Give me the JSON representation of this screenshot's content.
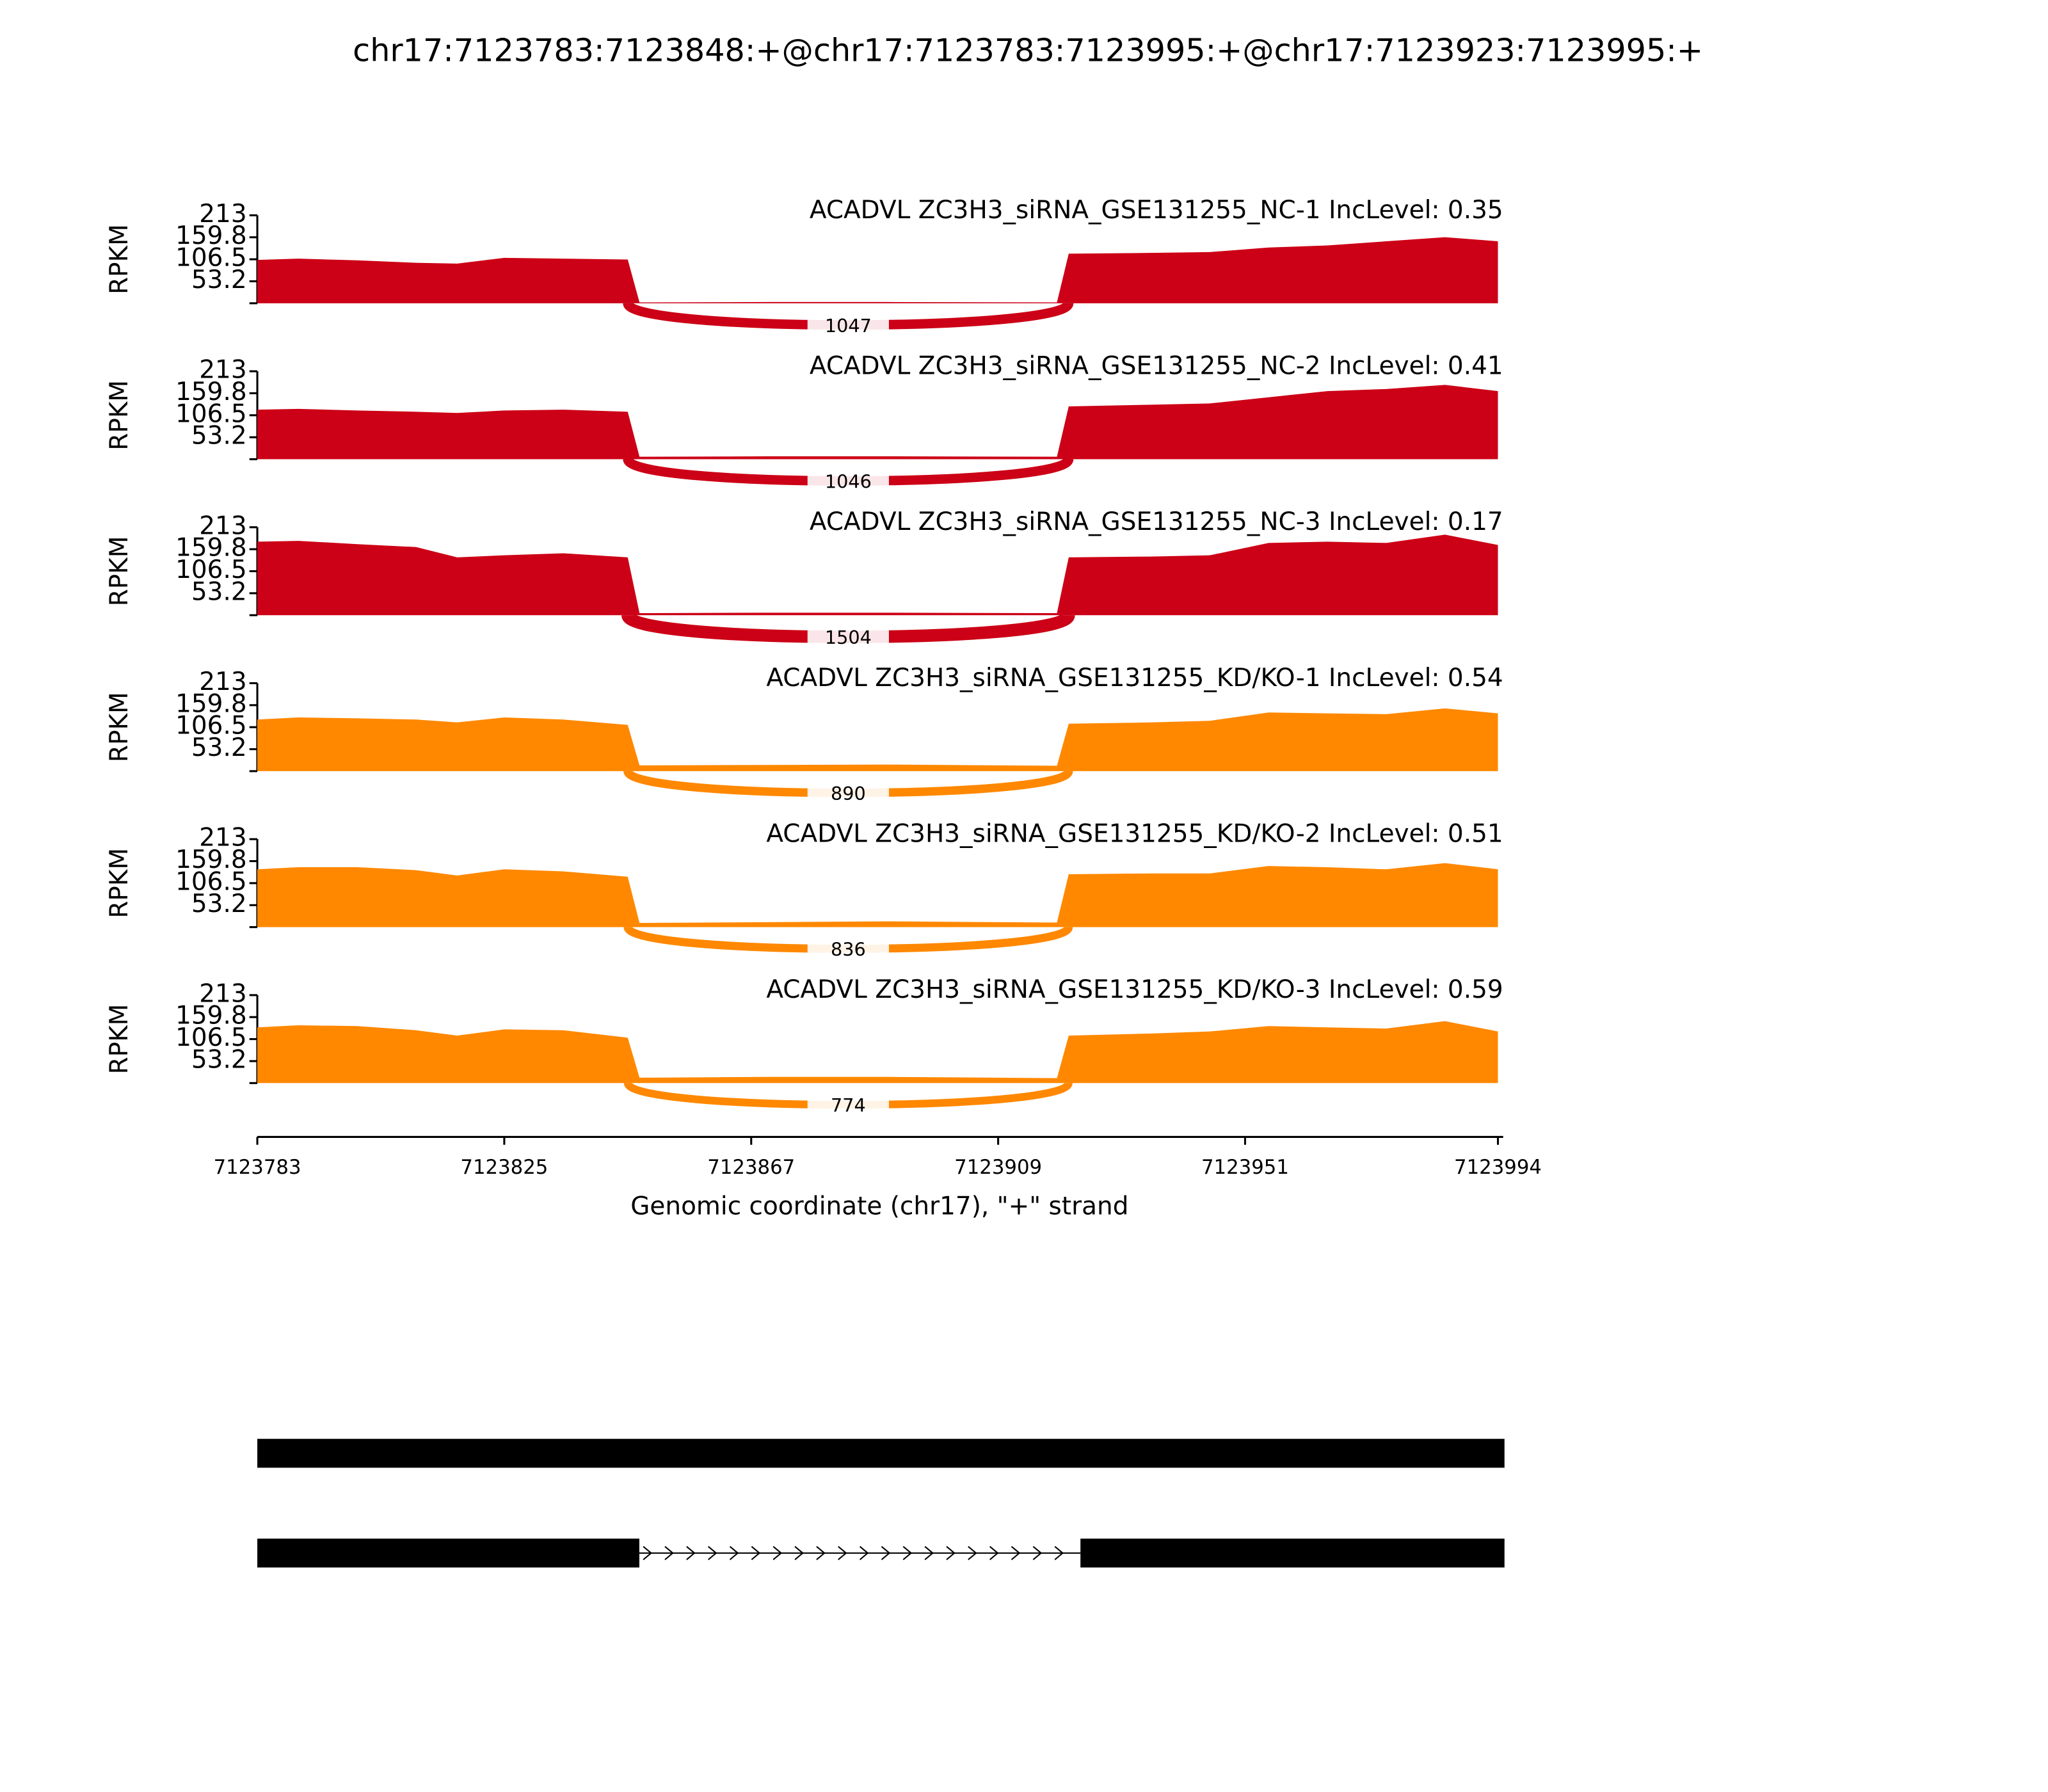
{
  "title": "chr17:7123783:7123848:+@chr17:7123783:7123995:+@chr17:7123923:7123995:+",
  "chart_data": [
    {
      "type": "area",
      "title": "ACADVL ZC3H3_siRNA_GSE131255_NC-1 IncLevel: 0.35",
      "ylabel": "RPKM",
      "color": "#cc0016",
      "x": [
        7123783,
        7123790,
        7123800,
        7123810,
        7123817,
        7123825,
        7123835,
        7123846,
        7123848,
        7123870,
        7123890,
        7123919,
        7123921,
        7123935,
        7123945,
        7123955,
        7123965,
        7123975,
        7123985,
        7123994
      ],
      "values": [
        105,
        108,
        104,
        98,
        96,
        110,
        108,
        106,
        2,
        3,
        3,
        2,
        120,
        122,
        124,
        135,
        140,
        150,
        160,
        150
      ],
      "junction_count": 1047,
      "xlim": [
        7123783,
        7123994
      ],
      "ylim": [
        0,
        213
      ],
      "yticks": [
        53.2,
        106.5,
        159.8,
        213
      ]
    },
    {
      "type": "area",
      "title": "ACADVL ZC3H3_siRNA_GSE131255_NC-2 IncLevel: 0.41",
      "ylabel": "RPKM",
      "color": "#cc0016",
      "x": [
        7123783,
        7123790,
        7123800,
        7123810,
        7123817,
        7123825,
        7123835,
        7123846,
        7123848,
        7123870,
        7123890,
        7123919,
        7123921,
        7123935,
        7123945,
        7123955,
        7123965,
        7123975,
        7123985,
        7123994
      ],
      "values": [
        120,
        122,
        118,
        115,
        112,
        118,
        120,
        115,
        6,
        7,
        7,
        6,
        128,
        132,
        135,
        150,
        165,
        170,
        180,
        165
      ],
      "junction_count": 1046,
      "xlim": [
        7123783,
        7123994
      ],
      "ylim": [
        0,
        213
      ],
      "yticks": [
        53.2,
        106.5,
        159.8,
        213
      ]
    },
    {
      "type": "area",
      "title": "ACADVL ZC3H3_siRNA_GSE131255_NC-3 IncLevel: 0.17",
      "ylabel": "RPKM",
      "color": "#cc0016",
      "x": [
        7123783,
        7123790,
        7123800,
        7123810,
        7123817,
        7123825,
        7123835,
        7123846,
        7123848,
        7123870,
        7123890,
        7123919,
        7123921,
        7123935,
        7123945,
        7123955,
        7123965,
        7123975,
        7123985,
        7123994
      ],
      "values": [
        178,
        180,
        172,
        165,
        140,
        145,
        150,
        140,
        5,
        6,
        6,
        5,
        140,
        142,
        145,
        175,
        178,
        175,
        195,
        170
      ],
      "junction_count": 1504,
      "xlim": [
        7123783,
        7123994
      ],
      "ylim": [
        0,
        213
      ],
      "yticks": [
        53.2,
        106.5,
        159.8,
        213
      ]
    },
    {
      "type": "area",
      "title": "ACADVL ZC3H3_siRNA_GSE131255_KD/KO-1 IncLevel: 0.54",
      "ylabel": "RPKM",
      "color": "#ff8800",
      "x": [
        7123783,
        7123790,
        7123800,
        7123810,
        7123817,
        7123825,
        7123835,
        7123846,
        7123848,
        7123870,
        7123890,
        7123919,
        7123921,
        7123935,
        7123945,
        7123955,
        7123965,
        7123975,
        7123985,
        7123994
      ],
      "values": [
        125,
        130,
        128,
        125,
        118,
        130,
        125,
        112,
        14,
        15,
        16,
        13,
        115,
        118,
        122,
        142,
        140,
        138,
        152,
        140
      ],
      "junction_count": 890,
      "xlim": [
        7123783,
        7123994
      ],
      "ylim": [
        0,
        213
      ],
      "yticks": [
        53.2,
        106.5,
        159.8,
        213
      ]
    },
    {
      "type": "area",
      "title": "ACADVL ZC3H3_siRNA_GSE131255_KD/KO-2 IncLevel: 0.51",
      "ylabel": "RPKM",
      "color": "#ff8800",
      "x": [
        7123783,
        7123790,
        7123800,
        7123810,
        7123817,
        7123825,
        7123835,
        7123846,
        7123848,
        7123870,
        7123890,
        7123919,
        7123921,
        7123935,
        7123945,
        7123955,
        7123965,
        7123975,
        7123985,
        7123994
      ],
      "values": [
        140,
        145,
        145,
        138,
        125,
        140,
        135,
        122,
        10,
        12,
        14,
        11,
        128,
        130,
        130,
        148,
        145,
        140,
        155,
        140
      ],
      "junction_count": 836,
      "xlim": [
        7123783,
        7123994
      ],
      "ylim": [
        0,
        213
      ],
      "yticks": [
        53.2,
        106.5,
        159.8,
        213
      ]
    },
    {
      "type": "area",
      "title": "ACADVL ZC3H3_siRNA_GSE131255_KD/KO-3 IncLevel: 0.59",
      "ylabel": "RPKM",
      "color": "#ff8800",
      "x": [
        7123783,
        7123790,
        7123800,
        7123810,
        7123817,
        7123825,
        7123835,
        7123846,
        7123848,
        7123870,
        7123890,
        7123919,
        7123921,
        7123935,
        7123945,
        7123955,
        7123965,
        7123975,
        7123985,
        7123994
      ],
      "values": [
        135,
        140,
        138,
        128,
        115,
        130,
        128,
        110,
        13,
        15,
        15,
        12,
        115,
        120,
        125,
        138,
        135,
        132,
        150,
        125
      ],
      "junction_count": 774,
      "xlim": [
        7123783,
        7123994
      ],
      "ylim": [
        0,
        213
      ],
      "yticks": [
        53.2,
        106.5,
        159.8,
        213
      ],
      "xticks": [
        7123783,
        7123825,
        7123867,
        7123909,
        7123951,
        7123994
      ],
      "xlabel": "Genomic coordinate (chr17), \"+\" strand"
    }
  ]
}
